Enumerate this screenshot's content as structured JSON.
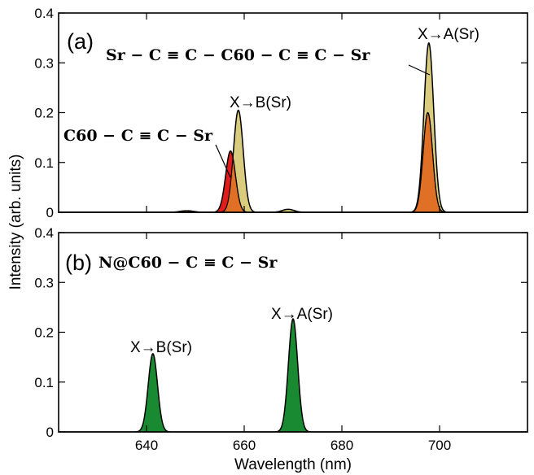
{
  "chart_data": [
    {
      "type": "line",
      "panel_label": "(a)",
      "ylabel": "Intensity (arb. units)",
      "xlim": [
        622,
        718
      ],
      "ylim": [
        0,
        0.4
      ],
      "yticks": [
        0,
        0.1,
        0.2,
        0.3,
        0.4
      ],
      "ytick_labels": [
        "0",
        "0.1",
        "0.2",
        "0.3",
        "0.4"
      ],
      "series": [
        {
          "name": "Sr − C ≡ C − C60 − C ≡ C − Sr",
          "color": "#d9cc7f",
          "peaks": [
            {
              "center": 658.8,
              "height": 0.205,
              "sigma": 1.0
            },
            {
              "center": 697.8,
              "height": 0.34,
              "sigma": 1.0
            },
            {
              "center": 669.0,
              "height": 0.006,
              "sigma": 1.2
            },
            {
              "center": 648.0,
              "height": 0.003,
              "sigma": 1.2
            }
          ]
        },
        {
          "name": "C60 − C ≡ C − Sr",
          "color": "#e01c1c",
          "peaks": [
            {
              "center": 657.2,
              "height": 0.123,
              "sigma": 1.0
            },
            {
              "center": 697.6,
              "height": 0.2,
              "sigma": 0.95
            },
            {
              "center": 648.5,
              "height": 0.003,
              "sigma": 1.2
            }
          ]
        }
      ],
      "overlap_color": "#e07025",
      "annotations": [
        {
          "text": "X→A(Sr)",
          "x": 698,
          "y": 0.355
        },
        {
          "text": "X→B(Sr)",
          "x": 659,
          "y": 0.225
        }
      ]
    },
    {
      "type": "line",
      "panel_label": "(b)",
      "formula": "N@C60 − C ≡ C − Sr",
      "xlabel": "Wavelength (nm)",
      "xlim": [
        622,
        718
      ],
      "ylim": [
        0,
        0.4
      ],
      "xticks": [
        640,
        660,
        680,
        700
      ],
      "xtick_labels": [
        "640",
        "660",
        "680",
        "700"
      ],
      "yticks": [
        0,
        0.1,
        0.2,
        0.3,
        0.4
      ],
      "ytick_labels": [
        "0",
        "0.1",
        "0.2",
        "0.3",
        "0.4"
      ],
      "series": [
        {
          "name": "N@C60 − C ≡ C − Sr",
          "color": "#1a8a32",
          "peaks": [
            {
              "center": 641.3,
              "height": 0.157,
              "sigma": 0.95
            },
            {
              "center": 670.0,
              "height": 0.227,
              "sigma": 0.95
            }
          ]
        }
      ],
      "annotations": [
        {
          "text": "X→B(Sr)",
          "x": 641,
          "y": 0.172
        },
        {
          "text": "X→A(Sr)",
          "x": 670,
          "y": 0.243
        }
      ]
    }
  ]
}
